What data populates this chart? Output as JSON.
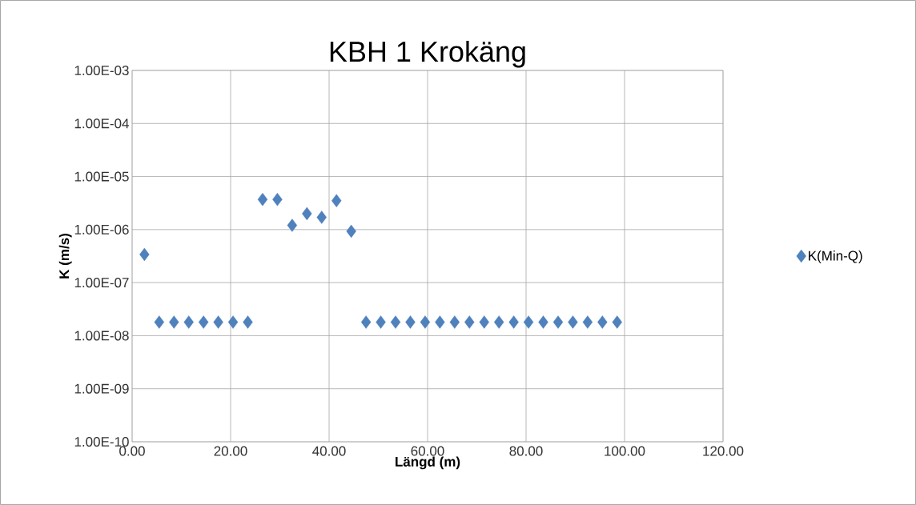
{
  "chart_data": {
    "type": "scatter",
    "title": "KBH 1 Krokäng",
    "xlabel": "Längd (m)",
    "ylabel": "K (m/s)",
    "x": [
      2.5,
      5.5,
      8.5,
      11.5,
      14.5,
      17.5,
      20.5,
      23.5,
      26.5,
      29.5,
      32.5,
      35.5,
      38.5,
      41.5,
      44.5,
      47.5,
      50.5,
      53.5,
      56.5,
      59.5,
      62.5,
      65.5,
      68.5,
      71.5,
      74.5,
      77.5,
      80.5,
      83.5,
      86.5,
      89.5,
      92.5,
      95.5,
      98.5
    ],
    "series": [
      {
        "name": "K(Min-Q)",
        "color": "#4f81bd",
        "values": [
          3.4e-07,
          1.8e-08,
          1.8e-08,
          1.8e-08,
          1.8e-08,
          1.8e-08,
          1.8e-08,
          1.8e-08,
          3.7e-06,
          3.7e-06,
          1.2e-06,
          2e-06,
          1.7e-06,
          3.5e-06,
          9.3e-07,
          1.8e-08,
          1.8e-08,
          1.8e-08,
          1.8e-08,
          1.8e-08,
          1.8e-08,
          1.8e-08,
          1.8e-08,
          1.8e-08,
          1.8e-08,
          1.8e-08,
          1.8e-08,
          1.8e-08,
          1.8e-08,
          1.8e-08,
          1.8e-08,
          1.8e-08,
          1.8e-08
        ]
      }
    ],
    "xlim": [
      0,
      120
    ],
    "xticks": [
      {
        "value": 0,
        "label": "0.00"
      },
      {
        "value": 20,
        "label": "20.00"
      },
      {
        "value": 40,
        "label": "40.00"
      },
      {
        "value": 60,
        "label": "60.00"
      },
      {
        "value": 80,
        "label": "80.00"
      },
      {
        "value": 100,
        "label": "100.00"
      },
      {
        "value": 120,
        "label": "120.00"
      }
    ],
    "ylim": [
      1e-10,
      0.001
    ],
    "yticks": [
      {
        "value": 1e-10,
        "label": "1.00E-10"
      },
      {
        "value": 1e-09,
        "label": "1.00E-09"
      },
      {
        "value": 1e-08,
        "label": "1.00E-08"
      },
      {
        "value": 1e-07,
        "label": "1.00E-07"
      },
      {
        "value": 1e-06,
        "label": "1.00E-06"
      },
      {
        "value": 1e-05,
        "label": "1.00E-05"
      },
      {
        "value": 0.0001,
        "label": "1.00E-04"
      },
      {
        "value": 0.001,
        "label": "1.00E-03"
      }
    ],
    "log": "y",
    "grid": true,
    "legend": "right",
    "marker": "diamond"
  }
}
